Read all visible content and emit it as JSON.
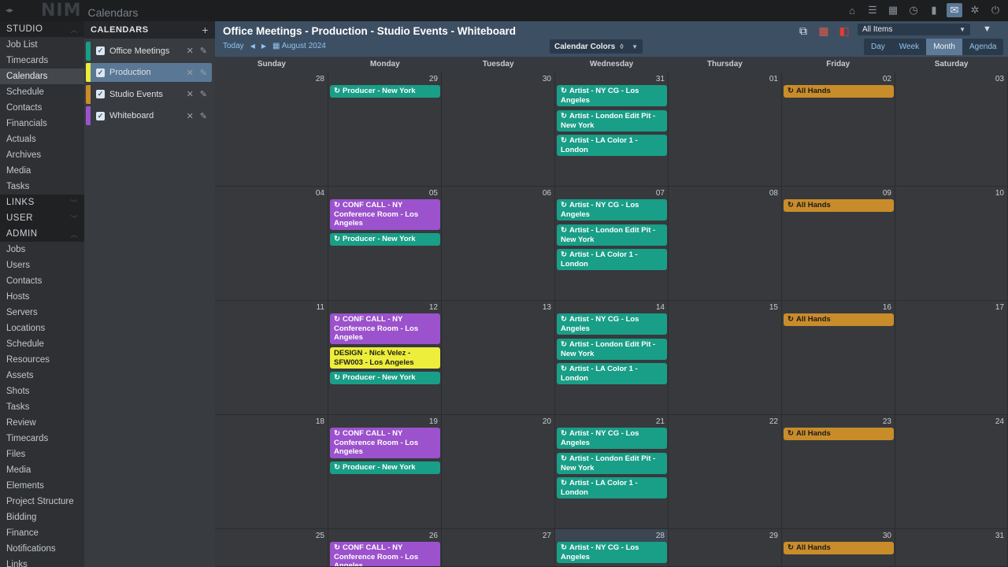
{
  "app": {
    "logo": "NIM",
    "title": "Calendars"
  },
  "topbar_icons": [
    "home-icon",
    "list-icon",
    "calendar-small-icon",
    "clock-icon",
    "bookmark-icon",
    "mail-icon",
    "gear-icon",
    "power-icon"
  ],
  "nav": {
    "studio_label": "STUDIO",
    "studio_items": [
      "Job List",
      "Timecards",
      "Calendars",
      "Schedule",
      "Contacts",
      "Financials",
      "Actuals",
      "Archives",
      "Media",
      "Tasks"
    ],
    "links_label": "LINKS",
    "user_label": "USER",
    "admin_label": "ADMIN",
    "admin_items": [
      "Jobs",
      "Users",
      "Contacts",
      "Hosts",
      "Servers",
      "Locations",
      "Schedule",
      "Resources",
      "Assets",
      "Shots",
      "Tasks",
      "Review",
      "Timecards",
      "Files",
      "Media",
      "Elements",
      "Project Structure",
      "Bidding",
      "Finance",
      "Notifications",
      "Links"
    ]
  },
  "calendars": {
    "header": "CALENDARS",
    "add": "+",
    "items": [
      {
        "name": "Office Meetings",
        "color": "#199e87"
      },
      {
        "name": "Production",
        "color": "#eded3b"
      },
      {
        "name": "Studio Events",
        "color": "#c98c2a"
      },
      {
        "name": "Whiteboard",
        "color": "#9b52cc"
      }
    ]
  },
  "main": {
    "title": "Office Meetings - Production - Studio Events - Whiteboard",
    "today": "Today",
    "month": "August 2024",
    "colors_label": "Calendar Colors",
    "all_items": "All Items",
    "views": [
      "Day",
      "Week",
      "Month",
      "Agenda"
    ],
    "active_view": "Month"
  },
  "days": [
    "Sunday",
    "Monday",
    "Tuesday",
    "Wednesday",
    "Thursday",
    "Friday",
    "Saturday"
  ],
  "weeks": [
    [
      "28",
      "29",
      "30",
      "31",
      "01",
      "02",
      "03"
    ],
    [
      "04",
      "05",
      "06",
      "07",
      "08",
      "09",
      "10"
    ],
    [
      "11",
      "12",
      "13",
      "14",
      "15",
      "16",
      "17"
    ],
    [
      "18",
      "19",
      "20",
      "21",
      "22",
      "23",
      "24"
    ],
    [
      "25",
      "26",
      "27",
      "28",
      "29",
      "30",
      "31"
    ]
  ],
  "events": {
    "producer": "Producer - New York",
    "conf_call": "CONF CALL - NY Conference Room - Los Angeles",
    "design": "DESIGN - Nick Velez - SFW003 - Los Angeles",
    "artist_ny": "Artist - NY CG - Los Angeles",
    "artist_london": "Artist - London Edit Pit - New York",
    "artist_la": "Artist - LA Color 1 - London",
    "all_hands": "All Hands"
  }
}
